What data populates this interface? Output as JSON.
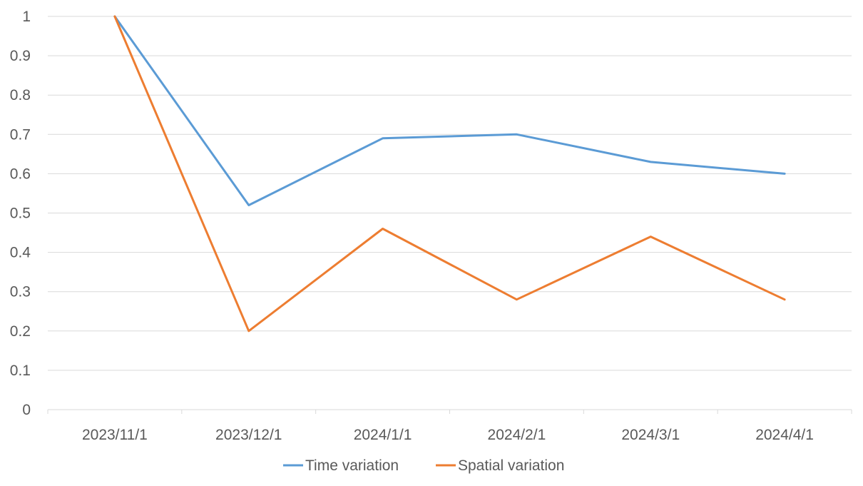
{
  "chart_data": {
    "type": "line",
    "title": "",
    "xlabel": "",
    "ylabel": "",
    "categories": [
      "2023/11/1",
      "2023/12/1",
      "2024/1/1",
      "2024/2/1",
      "2024/3/1",
      "2024/4/1"
    ],
    "ylim": [
      0,
      1
    ],
    "yticks": [
      "0",
      "0.1",
      "0.2",
      "0.3",
      "0.4",
      "0.5",
      "0.6",
      "0.7",
      "0.8",
      "0.9",
      "1"
    ],
    "grid": true,
    "legend_position": "bottom",
    "series": [
      {
        "name": "Time variation",
        "color": "#5b9bd5",
        "values": [
          1.0,
          0.52,
          0.69,
          0.7,
          0.63,
          0.6
        ]
      },
      {
        "name": "Spatial variation",
        "color": "#ed7d31",
        "values": [
          1.0,
          0.2,
          0.46,
          0.28,
          0.44,
          0.28
        ]
      }
    ]
  }
}
